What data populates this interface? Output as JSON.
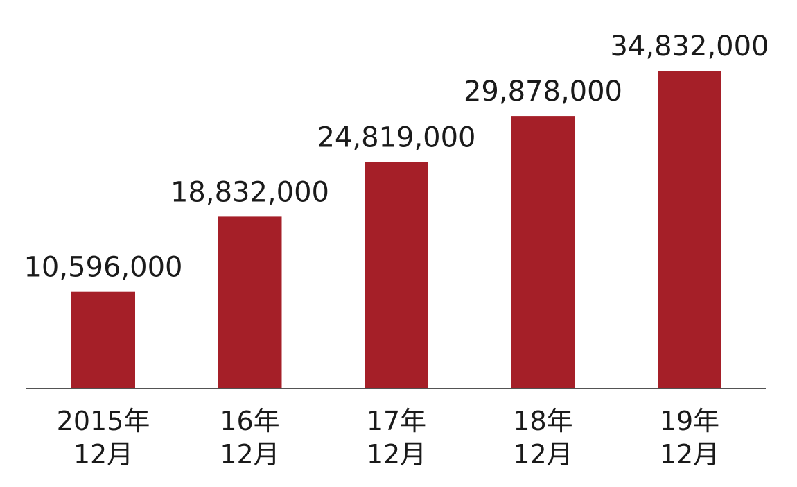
{
  "chart_data": {
    "type": "bar",
    "title": "",
    "xlabel": "",
    "ylabel": "",
    "categories": [
      [
        "2015年",
        "12月"
      ],
      [
        "16年",
        "12月"
      ],
      [
        "17年",
        "12月"
      ],
      [
        "18年",
        "12月"
      ],
      [
        "19年",
        "12月"
      ]
    ],
    "values": [
      10596000,
      18832000,
      24819000,
      29878000,
      34832000
    ],
    "value_labels": [
      "10,596,000",
      "18,832,000",
      "24,819,000",
      "29,878,000",
      "34,832,000"
    ],
    "ylim": [
      0,
      40000000
    ],
    "grid": false,
    "legend": "none",
    "colors": {
      "bar": "#a51f28",
      "axis": "#1a1a1a",
      "text": "#1a1a1a"
    }
  }
}
